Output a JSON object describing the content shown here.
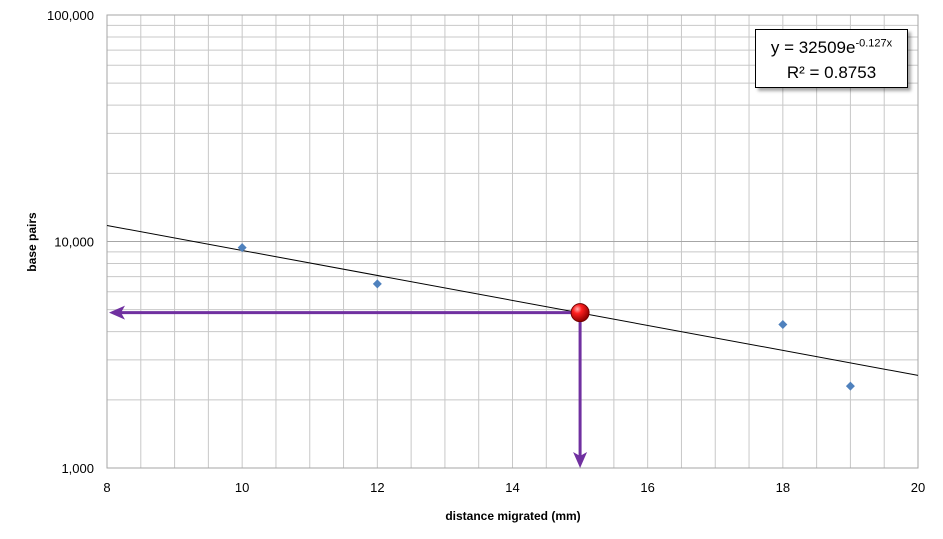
{
  "chart_data": {
    "type": "scatter",
    "title": "",
    "xlabel": "distance migrated (mm)",
    "ylabel": "base pairs",
    "xlim": [
      8,
      20
    ],
    "ylim": [
      1000,
      100000
    ],
    "y_scale": "log",
    "x_ticks": [
      8,
      10,
      12,
      14,
      16,
      18,
      20
    ],
    "x_tick_labels": [
      "8",
      "10",
      "12",
      "14",
      "16",
      "18",
      "20"
    ],
    "y_ticks": [
      1000,
      10000,
      100000
    ],
    "y_tick_labels": [
      "1,000",
      "10,000",
      "100,000"
    ],
    "grid": true,
    "x_minor_step": 0.5,
    "series": [
      {
        "marker": "diamond",
        "color": "#4f81bd",
        "x": [
          10,
          12,
          18,
          19
        ],
        "y": [
          9400,
          6500,
          4300,
          2300
        ]
      }
    ],
    "trendline": {
      "type": "exponential",
      "a": 32509,
      "b": -0.127,
      "color": "#000000",
      "equation": {
        "lhs": "y = 32509e",
        "exponent": "-0.127x",
        "r2": "R² = 0.8753"
      }
    },
    "highlight_point": {
      "x": 15,
      "y": 4850,
      "color": "#e00000"
    },
    "arrow_color": "#7030a0"
  }
}
